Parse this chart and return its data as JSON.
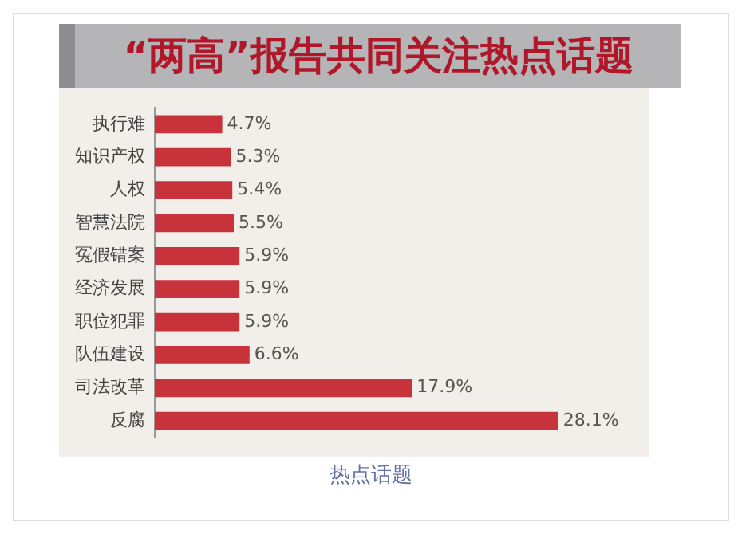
{
  "chart_data": {
    "type": "bar",
    "orientation": "horizontal",
    "title": "“两高”报告共同关注热点话题",
    "categories": [
      "执行难",
      "知识产权",
      "人权",
      "智慧法院",
      "冤假错案",
      "经济发展",
      "职位犯罪",
      "队伍建设",
      "司法改革",
      "反腐"
    ],
    "values": [
      4.7,
      5.3,
      5.4,
      5.5,
      5.9,
      5.9,
      5.9,
      6.6,
      17.9,
      28.1
    ],
    "value_labels": [
      "4.7%",
      "5.3%",
      "5.4%",
      "5.5%",
      "5.9%",
      "5.9%",
      "5.9%",
      "6.6%",
      "17.9%",
      "28.1%"
    ],
    "color": "#c8323a",
    "legend": false,
    "annotations": [
      "热点话题"
    ]
  }
}
